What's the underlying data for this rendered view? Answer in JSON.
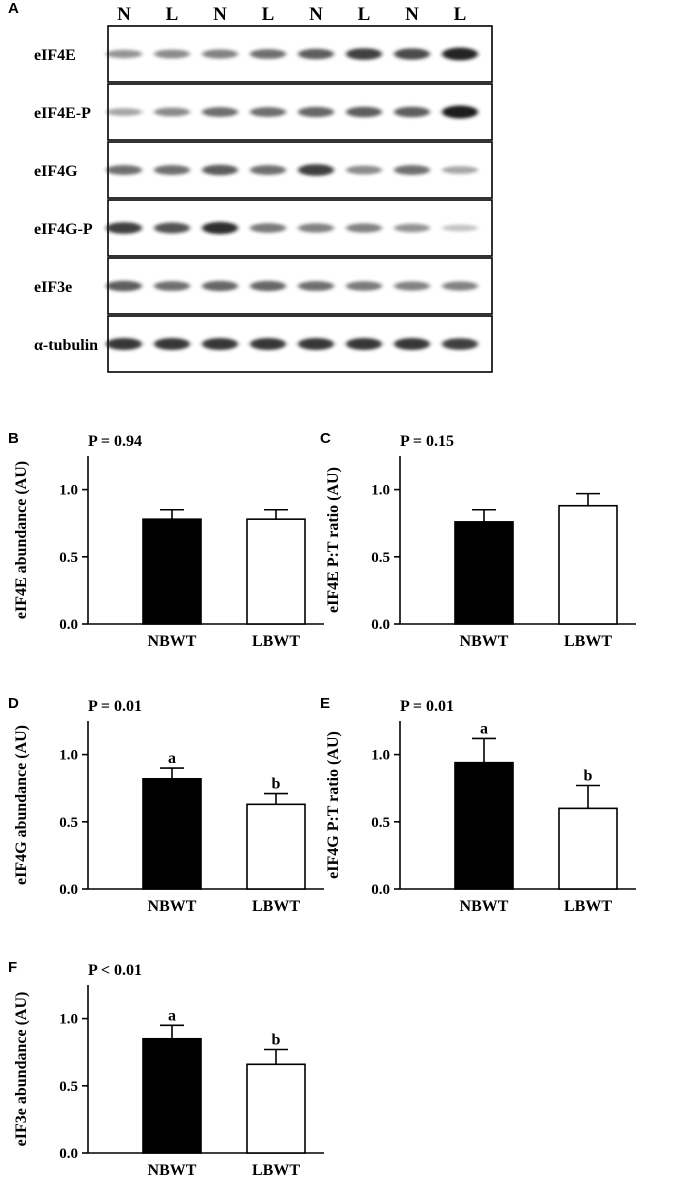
{
  "blot": {
    "panel": "A",
    "lanes": [
      "N",
      "L",
      "N",
      "L",
      "N",
      "L",
      "N",
      "L"
    ],
    "rows": [
      "eIF4E",
      "eIF4E-P",
      "eIF4G",
      "eIF4G-P",
      "eIF3e",
      "α-tubulin"
    ],
    "band_intensity": [
      [
        0.35,
        0.4,
        0.45,
        0.55,
        0.65,
        0.8,
        0.75,
        0.95
      ],
      [
        0.25,
        0.4,
        0.55,
        0.55,
        0.6,
        0.65,
        0.65,
        1.0
      ],
      [
        0.55,
        0.55,
        0.65,
        0.55,
        0.8,
        0.4,
        0.55,
        0.25
      ],
      [
        0.8,
        0.7,
        0.9,
        0.5,
        0.45,
        0.45,
        0.35,
        0.1
      ],
      [
        0.65,
        0.55,
        0.6,
        0.6,
        0.55,
        0.5,
        0.45,
        0.45
      ],
      [
        0.85,
        0.85,
        0.85,
        0.85,
        0.85,
        0.85,
        0.85,
        0.8
      ]
    ]
  },
  "colors": {
    "nbwt": "#000000",
    "lbwt": "#ffffff",
    "band": "#1a1a1a"
  },
  "chart_data": [
    {
      "panel": "B",
      "type": "bar",
      "pvalue": "P = 0.94",
      "ylabel": "eIF4E abundance (AU)",
      "categories": [
        "NBWT",
        "LBWT"
      ],
      "values": [
        0.78,
        0.78
      ],
      "errors": [
        0.07,
        0.07
      ],
      "sig_labels": [
        "",
        ""
      ],
      "ylim": [
        0,
        1.25
      ],
      "yticks": [
        "0.0",
        "0.5",
        "1.0"
      ]
    },
    {
      "panel": "C",
      "type": "bar",
      "pvalue": "P = 0.15",
      "ylabel": "eIF4E P:T ratio (AU)",
      "categories": [
        "NBWT",
        "LBWT"
      ],
      "values": [
        0.76,
        0.88
      ],
      "errors": [
        0.09,
        0.09
      ],
      "sig_labels": [
        "",
        ""
      ],
      "ylim": [
        0,
        1.25
      ],
      "yticks": [
        "0.0",
        "0.5",
        "1.0"
      ]
    },
    {
      "panel": "D",
      "type": "bar",
      "pvalue": "P = 0.01",
      "ylabel": "eIF4G abundance (AU)",
      "categories": [
        "NBWT",
        "LBWT"
      ],
      "values": [
        0.82,
        0.63
      ],
      "errors": [
        0.08,
        0.08
      ],
      "sig_labels": [
        "a",
        "b"
      ],
      "ylim": [
        0,
        1.25
      ],
      "yticks": [
        "0.0",
        "0.5",
        "1.0"
      ]
    },
    {
      "panel": "E",
      "type": "bar",
      "pvalue": "P = 0.01",
      "ylabel": "eIF4G P:T ratio (AU)",
      "categories": [
        "NBWT",
        "LBWT"
      ],
      "values": [
        0.94,
        0.6
      ],
      "errors": [
        0.18,
        0.17
      ],
      "sig_labels": [
        "a",
        "b"
      ],
      "ylim": [
        0,
        1.25
      ],
      "yticks": [
        "0.0",
        "0.5",
        "1.0"
      ]
    },
    {
      "panel": "F",
      "type": "bar",
      "pvalue": "P < 0.01",
      "ylabel": "eIF3e abundance (AU)",
      "categories": [
        "NBWT",
        "LBWT"
      ],
      "values": [
        0.85,
        0.66
      ],
      "errors": [
        0.1,
        0.11
      ],
      "sig_labels": [
        "a",
        "b"
      ],
      "ylim": [
        0,
        1.25
      ],
      "yticks": [
        "0.0",
        "0.5",
        "1.0"
      ]
    }
  ]
}
